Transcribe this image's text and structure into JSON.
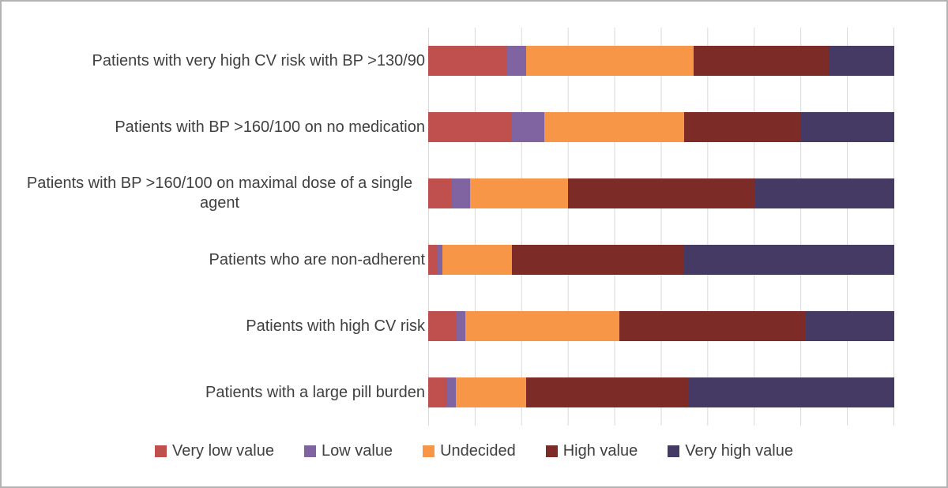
{
  "figure": {
    "background": "#ffffff",
    "border_color": "#b3b3b3",
    "gridline_color": "#d9d9d9",
    "label_color": "#404040"
  },
  "chart_data": {
    "type": "bar",
    "orientation": "horizontal",
    "stacked": true,
    "unit": "percent_of_total",
    "title": "",
    "xlabel": "",
    "ylabel": "",
    "xlim": [
      0,
      100
    ],
    "grid": true,
    "gridline_interval": 10,
    "legend_position": "bottom",
    "categories": [
      "Patients with very high CV risk with BP >130/90",
      "Patients with BP >160/100 on no medication",
      "Patients with BP >160/100 on maximal dose of a single agent",
      "Patients who are non-adherent",
      "Patients with high CV risk",
      "Patients with a large pill burden"
    ],
    "series": [
      {
        "name": "Very low value",
        "color": "#c0504d",
        "values": [
          17,
          18,
          5,
          2,
          6,
          4
        ]
      },
      {
        "name": "Low value",
        "color": "#8064a2",
        "values": [
          4,
          7,
          4,
          1,
          2,
          2
        ]
      },
      {
        "name": "Undecided",
        "color": "#f79646",
        "values": [
          36,
          30,
          21,
          15,
          33,
          15
        ]
      },
      {
        "name": "High value",
        "color": "#7d2b26",
        "values": [
          29,
          25,
          40,
          37,
          40,
          35
        ]
      },
      {
        "name": "Very high value",
        "color": "#453a64",
        "values": [
          14,
          20,
          30,
          45,
          19,
          44
        ]
      }
    ]
  }
}
